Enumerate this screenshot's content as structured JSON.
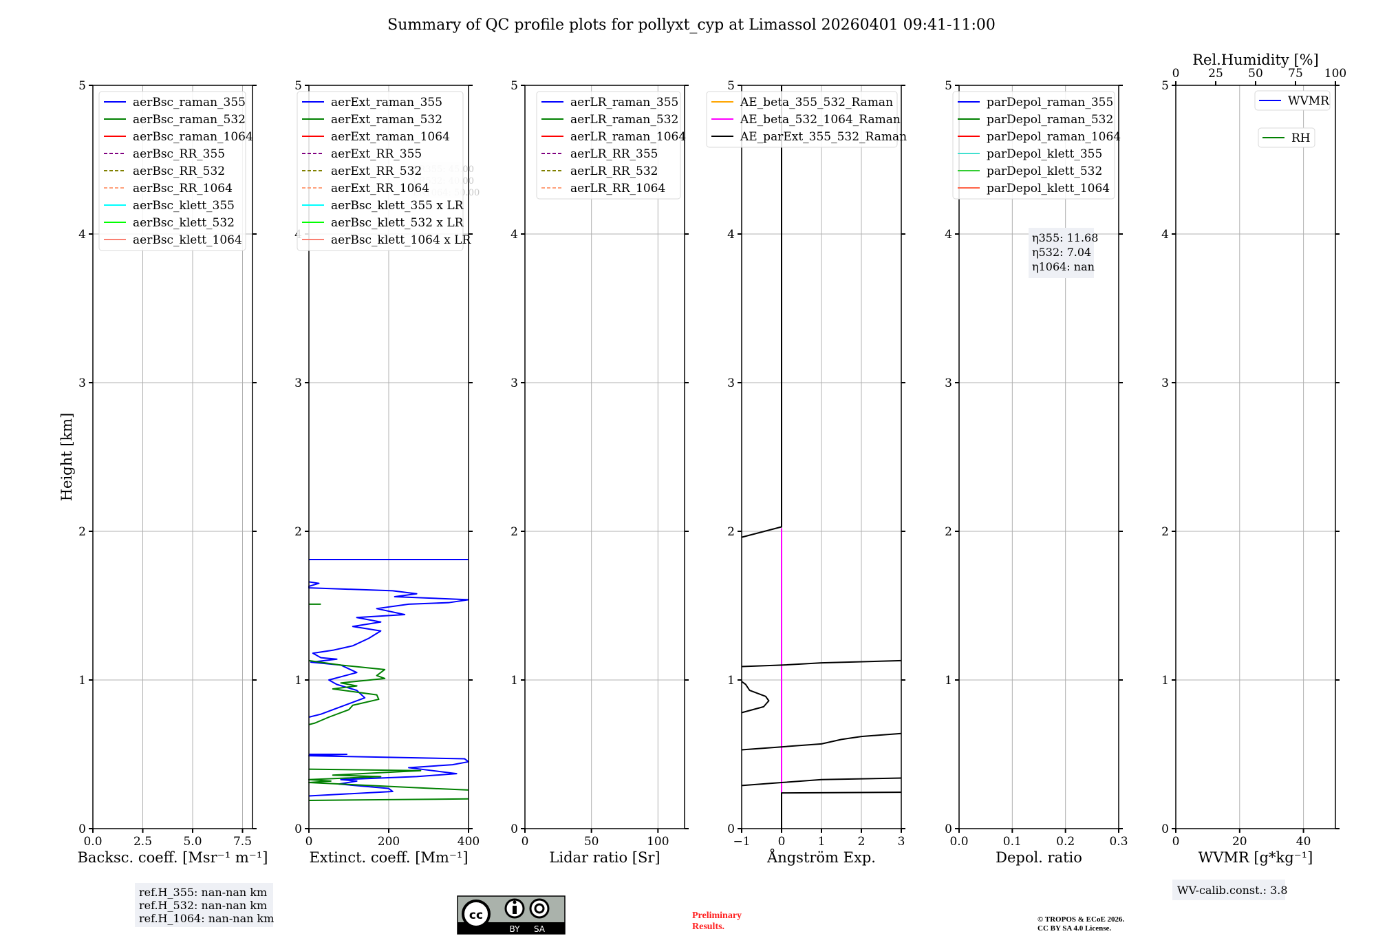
{
  "title": "Summary of QC profile plots for pollyxt_cyp at Limassol 20260401 09:41-11:00",
  "ylabel": "Height [km]",
  "chart_data": [
    {
      "type": "line",
      "xlabel": "Backsc. coeff. [Msr⁻¹ m⁻¹]",
      "xlim": [
        0,
        8
      ],
      "ylim": [
        0,
        5
      ],
      "xticks": [
        0,
        2.5,
        5,
        7.5
      ],
      "xtick_labels": [
        "0.0",
        "2.5",
        "5.0",
        "7.5"
      ],
      "yticks": [
        0,
        1,
        2,
        3,
        4,
        5
      ],
      "grid": true,
      "legend_position": "top-right",
      "legend": [
        {
          "label": "aerBsc_raman_355",
          "color": "#0000ff",
          "dash": false
        },
        {
          "label": "aerBsc_raman_532",
          "color": "#008000",
          "dash": false
        },
        {
          "label": "aerBsc_raman_1064",
          "color": "#ff0000",
          "dash": false
        },
        {
          "label": "aerBsc_RR_355",
          "color": "#800080",
          "dash": true
        },
        {
          "label": "aerBsc_RR_532",
          "color": "#808000",
          "dash": true
        },
        {
          "label": "aerBsc_RR_1064",
          "color": "#ffa07a",
          "dash": true
        },
        {
          "label": "aerBsc_klett_355",
          "color": "#00ffff",
          "dash": false
        },
        {
          "label": "aerBsc_klett_532",
          "color": "#00ff00",
          "dash": false
        },
        {
          "label": "aerBsc_klett_1064",
          "color": "#fa8072",
          "dash": false
        }
      ],
      "series": []
    },
    {
      "type": "line",
      "xlabel": "Extinct. coeff. [Mm⁻¹]",
      "xlim": [
        0,
        400
      ],
      "ylim": [
        0,
        5
      ],
      "xticks": [
        0,
        200,
        400
      ],
      "xtick_labels": [
        "0",
        "200",
        "400"
      ],
      "yticks": [
        0,
        1,
        2,
        3,
        4,
        5
      ],
      "grid": true,
      "legend_position": "top-right",
      "legend": [
        {
          "label": "aerExt_raman_355",
          "color": "#0000ff",
          "dash": false
        },
        {
          "label": "aerExt_raman_532",
          "color": "#008000",
          "dash": false
        },
        {
          "label": "aerExt_raman_1064",
          "color": "#ff0000",
          "dash": false
        },
        {
          "label": "aerExt_RR_355",
          "color": "#800080",
          "dash": true
        },
        {
          "label": "aerExt_RR_532",
          "color": "#808000",
          "dash": true
        },
        {
          "label": "aerExt_RR_1064",
          "color": "#ffa07a",
          "dash": true
        },
        {
          "label": "aerBsc_klett_355 x LR",
          "color": "#00ffff",
          "dash": false
        },
        {
          "label": "aerBsc_klett_532 x LR",
          "color": "#00ff00",
          "dash": false
        },
        {
          "label": "aerBsc_klett_1064 x LR",
          "color": "#fa8072",
          "dash": false
        }
      ],
      "annotation": [
        "LR355: 45.00",
        "LR532: 40.00",
        "LR1064: 50.00"
      ],
      "series": [
        {
          "name": "aerExt_raman_355",
          "color": "#0000ff",
          "segments": [
            [
              [
                0,
                1.81
              ],
              [
                400,
                1.81
              ]
            ],
            [
              [
                0,
                1.66
              ],
              [
                25,
                1.65
              ],
              [
                0,
                1.63
              ],
              [
                0,
                1.62
              ],
              [
                210,
                1.6
              ],
              [
                270,
                1.58
              ],
              [
                215,
                1.56
              ],
              [
                400,
                1.54
              ],
              [
                350,
                1.52
              ],
              [
                250,
                1.51
              ],
              [
                170,
                1.48
              ],
              [
                240,
                1.44
              ],
              [
                120,
                1.42
              ],
              [
                180,
                1.39
              ],
              [
                110,
                1.36
              ],
              [
                180,
                1.33
              ],
              [
                150,
                1.28
              ],
              [
                110,
                1.23
              ],
              [
                60,
                1.2
              ],
              [
                10,
                1.18
              ],
              [
                30,
                1.15
              ],
              [
                70,
                1.14
              ],
              [
                5,
                1.12
              ],
              [
                80,
                1.1
              ],
              [
                120,
                1.05
              ],
              [
                50,
                1.0
              ],
              [
                70,
                0.97
              ],
              [
                120,
                0.93
              ],
              [
                140,
                0.88
              ],
              [
                100,
                0.84
              ],
              [
                60,
                0.8
              ],
              [
                30,
                0.77
              ],
              [
                0,
                0.75
              ]
            ],
            [
              [
                0,
                0.5
              ],
              [
                95,
                0.5
              ],
              [
                0,
                0.49
              ],
              [
                390,
                0.47
              ],
              [
                400,
                0.45
              ],
              [
                360,
                0.43
              ],
              [
                250,
                0.41
              ],
              [
                370,
                0.37
              ],
              [
                270,
                0.35
              ],
              [
                80,
                0.33
              ],
              [
                120,
                0.32
              ],
              [
                75,
                0.3
              ],
              [
                200,
                0.27
              ],
              [
                210,
                0.25
              ],
              [
                0,
                0.22
              ]
            ]
          ]
        },
        {
          "name": "aerExt_raman_532",
          "color": "#008000",
          "segments": [
            [
              [
                0,
                1.51
              ],
              [
                30,
                1.51
              ]
            ],
            [
              [
                0,
                1.13
              ],
              [
                80,
                1.1
              ],
              [
                190,
                1.07
              ],
              [
                170,
                1.03
              ],
              [
                190,
                1.01
              ],
              [
                80,
                0.98
              ],
              [
                120,
                0.96
              ],
              [
                60,
                0.94
              ],
              [
                170,
                0.9
              ],
              [
                175,
                0.87
              ],
              [
                110,
                0.83
              ],
              [
                100,
                0.8
              ],
              [
                50,
                0.75
              ],
              [
                15,
                0.71
              ],
              [
                0,
                0.7
              ]
            ],
            [
              [
                0,
                0.4
              ],
              [
                280,
                0.39
              ],
              [
                60,
                0.36
              ],
              [
                180,
                0.35
              ],
              [
                0,
                0.33
              ],
              [
                55,
                0.32
              ],
              [
                0,
                0.31
              ],
              [
                310,
                0.27
              ],
              [
                400,
                0.26
              ]
            ],
            [
              [
                0,
                0.19
              ],
              [
                400,
                0.2
              ]
            ]
          ]
        }
      ]
    },
    {
      "type": "line",
      "xlabel": "Lidar ratio [Sr]",
      "xlim": [
        0,
        120
      ],
      "ylim": [
        0,
        5
      ],
      "xticks": [
        0,
        50,
        100
      ],
      "xtick_labels": [
        "0",
        "50",
        "100"
      ],
      "yticks": [
        0,
        1,
        2,
        3,
        4,
        5
      ],
      "grid": true,
      "legend_position": "top-right",
      "legend": [
        {
          "label": "aerLR_raman_355",
          "color": "#0000ff",
          "dash": false
        },
        {
          "label": "aerLR_raman_532",
          "color": "#008000",
          "dash": false
        },
        {
          "label": "aerLR_raman_1064",
          "color": "#ff0000",
          "dash": false
        },
        {
          "label": "aerLR_RR_355",
          "color": "#800080",
          "dash": true
        },
        {
          "label": "aerLR_RR_532",
          "color": "#808000",
          "dash": true
        },
        {
          "label": "aerLR_RR_1064",
          "color": "#ffa07a",
          "dash": true
        }
      ],
      "series": []
    },
    {
      "type": "line",
      "xlabel": "Ångström Exp.",
      "xlim": [
        -1,
        3
      ],
      "ylim": [
        0,
        5
      ],
      "xticks": [
        -1,
        0,
        1,
        2,
        3
      ],
      "xtick_labels": [
        "−1",
        "0",
        "1",
        "2",
        "3"
      ],
      "yticks": [
        0,
        1,
        2,
        3,
        4,
        5
      ],
      "grid": true,
      "legend_position": "top",
      "legend": [
        {
          "label": "AE_beta_355_532_Raman",
          "color": "#ffa500",
          "dash": false
        },
        {
          "label": "AE_beta_532_1064_Raman",
          "color": "#ff00ff",
          "dash": false
        },
        {
          "label": "AE_parExt_355_532_Raman",
          "color": "#000000",
          "dash": false
        }
      ],
      "series": [
        {
          "name": "AE_beta_532_1064_Raman",
          "color": "#ff00ff",
          "segments": [
            [
              [
                0,
                2.02
              ],
              [
                0,
                0.24
              ]
            ]
          ]
        },
        {
          "name": "AE_parExt_355_532_Raman",
          "color": "#000000",
          "segments": [
            [
              [
                0,
                5
              ],
              [
                0,
                2.03
              ],
              [
                -1,
                1.96
              ]
            ],
            [
              [
                -1,
                1.09
              ],
              [
                0,
                1.1
              ],
              [
                1,
                1.115
              ],
              [
                3,
                1.13
              ]
            ],
            [
              [
                -1,
                0.99
              ],
              [
                -0.9,
                0.97
              ],
              [
                -0.8,
                0.93
              ],
              [
                -0.4,
                0.89
              ],
              [
                -0.32,
                0.86
              ],
              [
                -0.45,
                0.82
              ],
              [
                -1,
                0.78
              ]
            ],
            [
              [
                -1,
                0.53
              ],
              [
                0,
                0.55
              ],
              [
                1,
                0.57
              ],
              [
                1.5,
                0.6
              ],
              [
                2,
                0.62
              ],
              [
                3,
                0.64
              ]
            ],
            [
              [
                -1,
                0.29
              ],
              [
                0,
                0.31
              ],
              [
                1,
                0.33
              ],
              [
                3,
                0.34
              ]
            ],
            [
              [
                3,
                0.245
              ],
              [
                0,
                0.24
              ],
              [
                0,
                0
              ]
            ]
          ]
        }
      ]
    },
    {
      "type": "line",
      "xlabel": "Depol. ratio",
      "xlim": [
        0,
        0.3
      ],
      "ylim": [
        0,
        5
      ],
      "xticks": [
        0,
        0.1,
        0.2,
        0.3
      ],
      "xtick_labels": [
        "0.0",
        "0.1",
        "0.2",
        "0.3"
      ],
      "yticks": [
        0,
        1,
        2,
        3,
        4,
        5
      ],
      "grid": true,
      "legend_position": "top-right",
      "legend": [
        {
          "label": "parDepol_raman_355",
          "color": "#0000ff",
          "dash": false
        },
        {
          "label": "parDepol_raman_532",
          "color": "#008000",
          "dash": false
        },
        {
          "label": "parDepol_raman_1064",
          "color": "#ff0000",
          "dash": false
        },
        {
          "label": "parDepol_klett_355",
          "color": "#40e0d0",
          "dash": false
        },
        {
          "label": "parDepol_klett_532",
          "color": "#32cd32",
          "dash": false
        },
        {
          "label": "parDepol_klett_1064",
          "color": "#ff6347",
          "dash": false
        }
      ],
      "annotation": [
        "η355: 11.68",
        "η532: 7.04",
        "η1064: nan"
      ],
      "series": []
    },
    {
      "type": "line",
      "xlabel": "WVMR [g*kg⁻¹]",
      "xlim": [
        0,
        50
      ],
      "ylim": [
        0,
        5
      ],
      "xticks": [
        0,
        20,
        40
      ],
      "xtick_labels": [
        "0",
        "20",
        "40"
      ],
      "yticks": [
        0,
        1,
        2,
        3,
        4,
        5
      ],
      "grid": true,
      "legend_position": "top-right",
      "top_axis": {
        "label": "Rel.Humidity [%]",
        "xlim": [
          0,
          100
        ],
        "xticks": [
          0,
          25,
          50,
          75,
          100
        ],
        "xtick_labels": [
          "0",
          "25",
          "50",
          "75",
          "100"
        ]
      },
      "legend": [
        {
          "label": "WVMR",
          "color": "#0000ff",
          "dash": false
        },
        {
          "label": "RH",
          "color": "#008000",
          "dash": false
        }
      ],
      "series": []
    }
  ],
  "footer": {
    "refH": [
      "ref.H_355: nan-nan km",
      "ref.H_532: nan-nan km",
      "ref.H_1064: nan-nan km"
    ],
    "license_badge": [
      "cc",
      "BY",
      "SA"
    ],
    "preliminary": [
      "Preliminary",
      "Results."
    ],
    "copyright": [
      "© TROPOS & ECoE 2026.",
      "CC BY SA 4.0 License."
    ],
    "wv_calib": "WV-calib.const.: 3.8"
  }
}
